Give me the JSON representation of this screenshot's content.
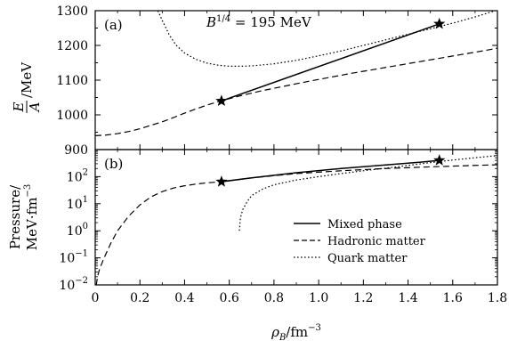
{
  "chart_data": [
    {
      "type": "line",
      "panel_label": "(a)",
      "annotation": "B^{1/4} = 195 MeV",
      "ylabel": "E/A /MeV",
      "xlim": [
        0,
        1.8
      ],
      "ylim": [
        900,
        1300
      ],
      "yscale": "linear",
      "yticks": [
        900,
        1000,
        1100,
        1200,
        1300
      ],
      "grid": false,
      "series": [
        {
          "name": "Hadronic matter",
          "style": "dashed",
          "x": [
            0.0,
            0.05,
            0.1,
            0.15,
            0.2,
            0.25,
            0.3,
            0.35,
            0.4,
            0.45,
            0.5,
            0.565,
            0.65,
            0.75,
            0.85,
            0.95,
            1.05,
            1.15,
            1.25,
            1.35,
            1.45,
            1.55,
            1.65,
            1.75,
            1.8
          ],
          "y": [
            940,
            942,
            946,
            952,
            960,
            970,
            980,
            992,
            1005,
            1017,
            1028,
            1041,
            1055,
            1070,
            1083,
            1096,
            1108,
            1120,
            1131,
            1142,
            1153,
            1164,
            1175,
            1186,
            1192
          ]
        },
        {
          "name": "Quark matter",
          "style": "dotted",
          "x": [
            0.28,
            0.3,
            0.33,
            0.36,
            0.4,
            0.45,
            0.5,
            0.55,
            0.6,
            0.65,
            0.7,
            0.8,
            0.9,
            1.0,
            1.1,
            1.2,
            1.3,
            1.4,
            1.5,
            1.6,
            1.7,
            1.8
          ],
          "y": [
            1300,
            1272,
            1232,
            1202,
            1178,
            1160,
            1149,
            1143,
            1140,
            1140,
            1141,
            1147,
            1157,
            1170,
            1184,
            1200,
            1216,
            1232,
            1248,
            1264,
            1282,
            1302
          ]
        },
        {
          "name": "Mixed phase",
          "style": "solid",
          "x": [
            0.565,
            1.54
          ],
          "y": [
            1040,
            1262
          ]
        }
      ],
      "markers": [
        {
          "x": 0.565,
          "y": 1040
        },
        {
          "x": 1.54,
          "y": 1262
        }
      ]
    },
    {
      "type": "line",
      "panel_label": "(b)",
      "ylabel": "Pressure/ MeV·fm^-3",
      "xlabel": "ρ_B/fm^-3",
      "xlim": [
        0,
        1.8
      ],
      "ylim": [
        0.01,
        1000
      ],
      "yscale": "log",
      "xticks": [
        0,
        0.2,
        0.4,
        0.6,
        0.8,
        1.0,
        1.2,
        1.4,
        1.6,
        1.8
      ],
      "yticks": [
        0.01,
        0.1,
        1,
        10,
        100
      ],
      "grid": false,
      "legend": {
        "position": "lower-right",
        "entries": [
          "Mixed phase",
          "Hadronic matter",
          "Quark matter"
        ]
      },
      "series": [
        {
          "name": "Hadronic matter",
          "style": "dashed",
          "x": [
            0.005,
            0.01,
            0.02,
            0.04,
            0.07,
            0.1,
            0.15,
            0.2,
            0.25,
            0.3,
            0.35,
            0.4,
            0.45,
            0.5,
            0.565,
            0.7,
            0.9,
            1.1,
            1.3,
            1.5,
            1.7,
            1.8
          ],
          "y": [
            0.01,
            0.02,
            0.04,
            0.1,
            0.35,
            1.0,
            3.5,
            9.0,
            18,
            28,
            38,
            46,
            53,
            59,
            65,
            90,
            130,
            165,
            200,
            230,
            260,
            275
          ]
        },
        {
          "name": "Quark matter",
          "style": "dotted",
          "x": [
            0.645,
            0.65,
            0.66,
            0.68,
            0.7,
            0.75,
            0.8,
            0.9,
            1.0,
            1.1,
            1.2,
            1.3,
            1.4,
            1.5,
            1.6,
            1.7,
            1.8
          ],
          "y": [
            1.0,
            3.0,
            6.0,
            12,
            20,
            35,
            50,
            75,
            100,
            130,
            165,
            205,
            260,
            330,
            410,
            500,
            600
          ]
        },
        {
          "name": "Mixed phase",
          "style": "solid",
          "x": [
            0.565,
            0.7,
            0.9,
            1.1,
            1.3,
            1.45,
            1.54
          ],
          "y": [
            65,
            90,
            140,
            200,
            270,
            340,
            400
          ]
        }
      ],
      "markers": [
        {
          "x": 0.565,
          "y": 65
        },
        {
          "x": 1.54,
          "y": 400
        }
      ]
    }
  ]
}
